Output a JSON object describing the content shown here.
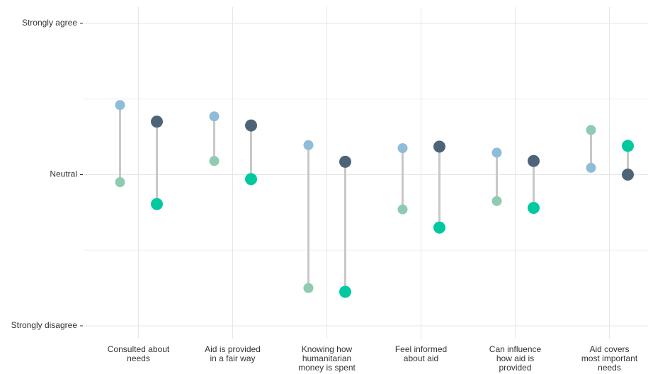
{
  "chart_data": {
    "type": "dumbbell",
    "categories": [
      [
        "Consulted about",
        "needs"
      ],
      [
        "Aid is provided",
        "in a fair way"
      ],
      [
        "Knowing how",
        "humanitarian",
        "money is spent"
      ],
      [
        "Feel informed",
        "about aid"
      ],
      [
        "Can influence",
        "how aid is",
        "provided"
      ],
      [
        "Aid covers",
        "most important",
        "needs"
      ]
    ],
    "series": [
      {
        "color": "#8fbcd9",
        "values": [
          3.92,
          3.77,
          3.39,
          3.35,
          3.29,
          3.09
        ]
      },
      {
        "color": "#8fcbb0",
        "values": [
          2.9,
          3.18,
          1.5,
          2.54,
          2.65,
          3.59
        ]
      },
      {
        "color": "#4d6478",
        "values": [
          3.7,
          3.65,
          3.17,
          3.37,
          3.18,
          3.0
        ]
      },
      {
        "color": "#00c9a0",
        "values": [
          2.61,
          2.94,
          1.45,
          2.3,
          2.56,
          3.38
        ]
      }
    ],
    "ylim": [
      1,
      5
    ],
    "yticks": [
      {
        "value": 1,
        "label": "Strongly disagree"
      },
      {
        "value": 3,
        "label": "Neutral"
      },
      {
        "value": 5,
        "label": "Strongly agree"
      }
    ],
    "minor_yticks": [
      2,
      4
    ],
    "grid": true
  }
}
